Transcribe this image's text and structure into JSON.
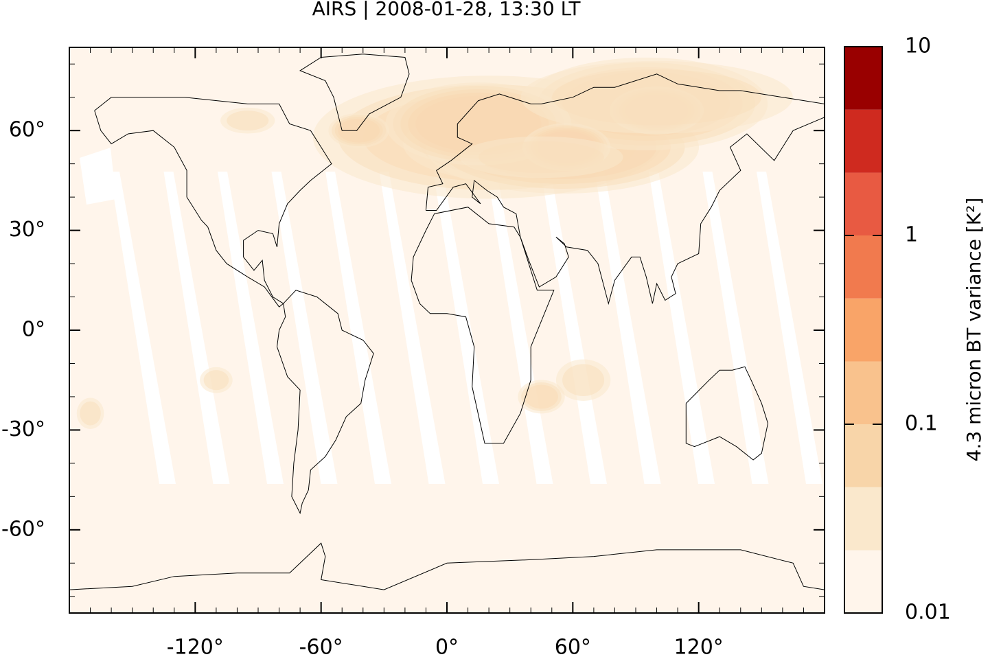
{
  "chart_data": {
    "type": "map",
    "title": "AIRS | 2008-01-28, 13:30 LT",
    "colorbar_label": "4.3 micron BT variance [K²]",
    "xlim": [
      -180,
      180
    ],
    "ylim": [
      -85,
      85
    ],
    "xticks": [
      {
        "value": -120,
        "label": "-120°"
      },
      {
        "value": -60,
        "label": "-60°"
      },
      {
        "value": 0,
        "label": "0°"
      },
      {
        "value": 60,
        "label": "60°"
      },
      {
        "value": 120,
        "label": "120°"
      }
    ],
    "yticks": [
      {
        "value": -60,
        "label": "-60°"
      },
      {
        "value": -30,
        "label": "-30°"
      },
      {
        "value": 0,
        "label": "0°"
      },
      {
        "value": 30,
        "label": "30°"
      },
      {
        "value": 60,
        "label": "60°"
      }
    ],
    "colorbar_lim": [
      0.01,
      10
    ],
    "colorbar_log": true,
    "colorbar_ticks": [
      0.01,
      0.1,
      1,
      10
    ],
    "levels": [
      0.01,
      0.0215,
      0.0464,
      0.1,
      0.215,
      0.464,
      1,
      2.15,
      4.64,
      10
    ],
    "colors": [
      "#fff5eb",
      "#fae8cc",
      "#f8d5a9",
      "#f9c28d",
      "#f9a468",
      "#f17a4e",
      "#e85a42",
      "#cf2a1f",
      "#990000"
    ]
  }
}
